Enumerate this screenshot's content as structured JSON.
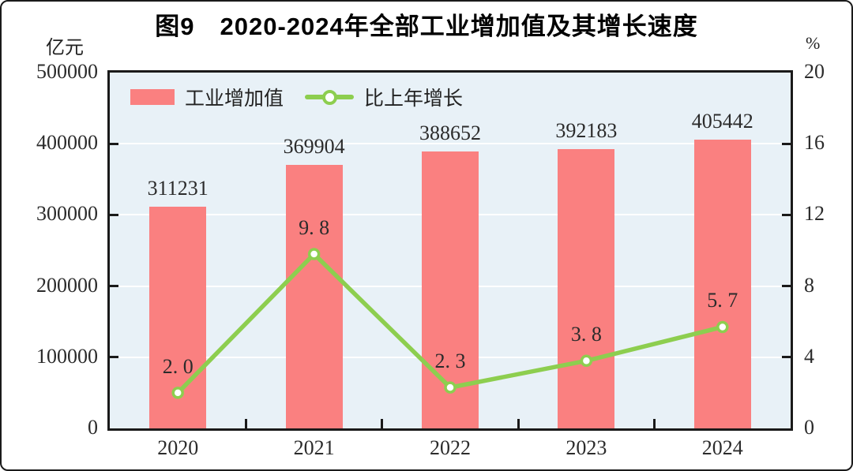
{
  "title": "图9　2020-2024年全部工业增加值及其增长速度",
  "colors": {
    "bar": "#FA8080",
    "line": "#8DCE4F",
    "plot_background": "#E8F1F7",
    "grid": "#FFFFFF",
    "axis_border": "#1A1A1A",
    "text": "#2B2B2B"
  },
  "legend": {
    "bar_label": "工业增加值",
    "line_label": "比上年增长"
  },
  "chart_data": {
    "type": "bar+line",
    "title": "图9　2020-2024年全部工业增加值及其增长速度",
    "categories": [
      "2020",
      "2021",
      "2022",
      "2023",
      "2024"
    ],
    "series": [
      {
        "name": "工业增加值",
        "type": "bar",
        "axis": "left",
        "unit": "亿元",
        "color": "#FA8080",
        "values": [
          311231,
          369904,
          388652,
          392183,
          405442
        ],
        "labels": [
          "311231",
          "369904",
          "388652",
          "392183",
          "405442"
        ]
      },
      {
        "name": "比上年增长",
        "type": "line",
        "axis": "right",
        "unit": "%",
        "color": "#8DCE4F",
        "values": [
          2.0,
          9.8,
          2.3,
          3.8,
          5.7
        ],
        "labels": [
          "2. 0",
          "9. 8",
          "2. 3",
          "3. 8",
          "5. 7"
        ]
      }
    ],
    "left_axis": {
      "unit": "亿元",
      "min": 0,
      "max": 500000,
      "tick_labels": [
        "500000",
        "400000",
        "300000",
        "200000",
        "100000",
        "0"
      ]
    },
    "right_axis": {
      "unit": "%",
      "min": 0,
      "max": 20,
      "tick_labels": [
        "20",
        "16",
        "12",
        "8",
        "4",
        "0"
      ]
    },
    "grid": true,
    "legend_position": "top-left-inside"
  }
}
